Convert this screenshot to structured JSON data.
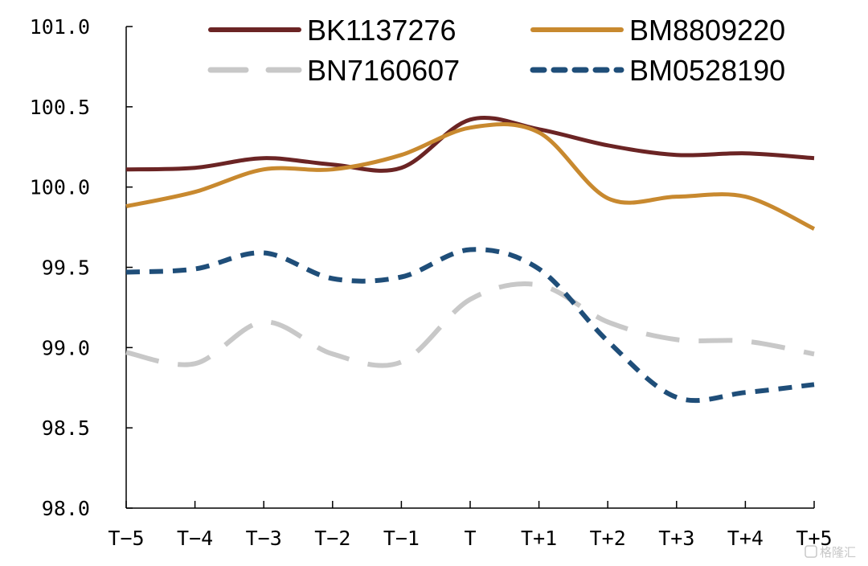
{
  "chart_data": {
    "type": "line",
    "categories": [
      "T−5",
      "T−4",
      "T−3",
      "T−2",
      "T−1",
      "T",
      "T+1",
      "T+2",
      "T+3",
      "T+4",
      "T+5"
    ],
    "ylim": [
      98.0,
      101.0
    ],
    "yticks": [
      98.0,
      98.5,
      99.0,
      99.5,
      100.0,
      100.5,
      101.0
    ],
    "ytick_labels": [
      "98.0",
      "98.5",
      "99.0",
      "99.5",
      "100.0",
      "100.5",
      "101.0"
    ],
    "grid": false,
    "legend_position": "top",
    "series": [
      {
        "name": "BK1137276",
        "color": "#6b2424",
        "style": "solid",
        "values": [
          100.11,
          100.12,
          100.18,
          100.14,
          100.12,
          100.42,
          100.36,
          100.26,
          100.2,
          100.21,
          100.18
        ]
      },
      {
        "name": "BM8809220",
        "color": "#c8892f",
        "style": "solid",
        "values": [
          99.88,
          99.97,
          100.11,
          100.11,
          100.2,
          100.37,
          100.34,
          99.93,
          99.94,
          99.94,
          99.74
        ]
      },
      {
        "name": "BN7160607",
        "color": "#c8c8c8",
        "style": "long-dash",
        "values": [
          98.97,
          98.9,
          99.16,
          98.96,
          98.91,
          99.3,
          99.39,
          99.16,
          99.05,
          99.04,
          98.96
        ]
      },
      {
        "name": "BM0528190",
        "color": "#1f4e79",
        "style": "short-dash",
        "values": [
          99.47,
          99.49,
          99.59,
          99.43,
          99.44,
          99.61,
          99.49,
          99.04,
          98.69,
          98.72,
          98.77
        ]
      }
    ]
  },
  "watermark": "格隆汇"
}
